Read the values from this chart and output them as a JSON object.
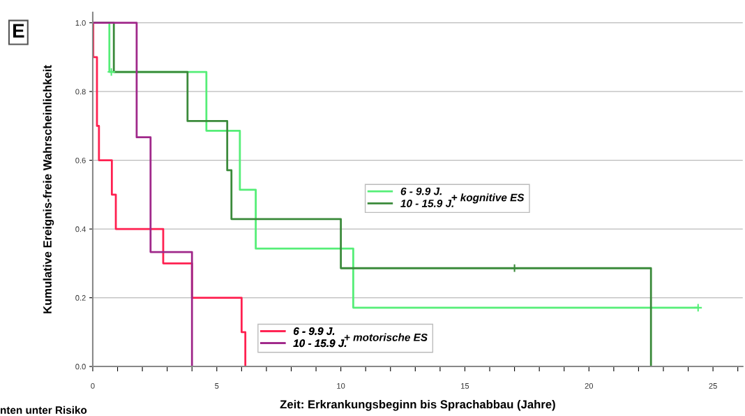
{
  "chart_data": {
    "type": "step",
    "xlabel": "Zeit: Erkrankungsbeginn bis Sprachabbau (Jahre)",
    "ylabel": "Kumulative Ereignis-freie Wahrscheinlichkeit",
    "annotations": [
      "E",
      "+ kognitive ES",
      "+ motorische ES",
      "nten unter Risiko"
    ],
    "series": [
      {
        "name": "6 - 9.9 J.",
        "color": "#55ee77",
        "x": [
          0,
          0.67,
          4.58,
          5.93,
          6.57,
          10.5,
          24.4
        ],
        "values": [
          1.0,
          0.857,
          0.686,
          0.514,
          0.343,
          0.171,
          0.171
        ]
      },
      {
        "name": "10 - 15.9 J.",
        "color": "#3a8a3a",
        "x": [
          0,
          0.85,
          3.82,
          5.42,
          5.59,
          10.0,
          22.5
        ],
        "values": [
          1.0,
          0.857,
          0.714,
          0.571,
          0.429,
          0.286,
          0.0
        ]
      },
      {
        "name": "6 - 9.9 J.",
        "color": "#ff2050",
        "x": [
          0,
          0.02,
          0.17,
          0.25,
          0.77,
          0.93,
          2.84,
          4.0,
          6.0,
          6.15
        ],
        "values": [
          1.0,
          0.9,
          0.7,
          0.6,
          0.5,
          0.4,
          0.3,
          0.2,
          0.1,
          0.0
        ]
      },
      {
        "name": "10 - 15.9 J.",
        "color": "#a0288a",
        "x": [
          0,
          1.77,
          2.33,
          4.0
        ],
        "values": [
          1.0,
          0.667,
          0.333,
          0.0
        ]
      },
      {
        "type": "scatter",
        "marker": "cross",
        "color": "#55ee77",
        "x": [
          0.75,
          24.4
        ],
        "values": [
          0.857,
          0.171
        ]
      },
      {
        "type": "scatter",
        "marker": "cross",
        "color": "#3a8a3a",
        "x": [
          17.0
        ],
        "values": [
          0.286
        ]
      }
    ],
    "xlim": [
      0,
      26.2
    ],
    "ylim": [
      0,
      1.03
    ],
    "xticks": [
      0,
      {
        "value": 1,
        "label": null
      },
      {
        "value": 2,
        "label": null
      },
      {
        "value": 3,
        "label": null
      },
      {
        "value": 4,
        "label": null
      },
      5,
      {
        "value": 6,
        "label": null
      },
      {
        "value": 7,
        "label": null
      },
      {
        "value": 8,
        "label": null
      },
      {
        "value": 9,
        "label": null
      },
      10,
      {
        "value": 11,
        "label": null
      },
      {
        "value": 12,
        "label": null
      },
      {
        "value": 13,
        "label": null
      },
      {
        "value": 14,
        "label": null
      },
      15,
      {
        "value": 16,
        "label": null
      },
      {
        "value": 17,
        "label": null
      },
      {
        "value": 18,
        "label": null
      },
      {
        "value": 19,
        "label": null
      },
      20,
      {
        "value": 21,
        "label": null
      },
      {
        "value": 22,
        "label": null
      },
      {
        "value": 23,
        "label": null
      },
      {
        "value": 24,
        "label": null
      },
      25,
      {
        "value": 26,
        "label": null
      }
    ],
    "yticks": [
      {
        "value": 0,
        "label": "0.0"
      },
      {
        "value": 0.2,
        "label": "0.2"
      },
      {
        "value": 0.4,
        "label": "0.4"
      },
      {
        "value": 0.6,
        "label": "0.6"
      },
      {
        "value": 0.8,
        "label": "0.8"
      },
      {
        "value": 1.0,
        "label": "1.0"
      }
    ],
    "grid": "y",
    "legend": "bottom",
    "line_style": "solid",
    "marker": "none"
  }
}
